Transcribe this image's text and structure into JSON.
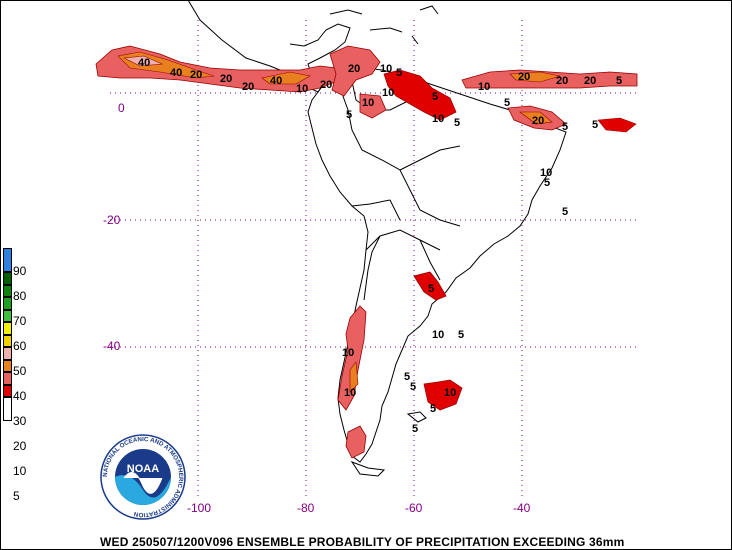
{
  "caption": "WED 250507/1200V096  ENSEMBLE PROBABILITY OF PRECIPITATION EXCEEDING 36mm",
  "lat_labels": [
    "0",
    "-20",
    "-40"
  ],
  "lon_labels": [
    "-100",
    "-80",
    "-60",
    "-40"
  ],
  "legend": {
    "labels": [
      "5",
      "10",
      "20",
      "30",
      "40",
      "50",
      "60",
      "70",
      "80",
      "90"
    ],
    "colors": {
      "c0": "#ffffff",
      "c5": "#e00000",
      "c10": "#e86060",
      "c20": "#e88020",
      "c30": "#f0b0b0",
      "c40": "#f0d000",
      "c50": "#f0f000",
      "c60": "#40c040",
      "c70": "#20a020",
      "c80": "#108010",
      "c90": "#006000",
      "c100": "#3080e0"
    }
  },
  "logo": {
    "text": "NOAA",
    "ring_text": "NATIONAL OCEANIC AND ATMOSPHERIC ADMINISTRATION"
  },
  "contour_labels": {
    "pacific_band": [
      "40",
      "40",
      "20",
      "20",
      "20",
      "40",
      "20",
      "10",
      "20",
      "10"
    ],
    "atlantic_band": [
      "10",
      "20",
      "20",
      "20",
      "5"
    ],
    "amazon": [
      "5",
      "10",
      "5",
      "10",
      "5",
      "10",
      "5"
    ],
    "brazil_coast": [
      "20",
      "5",
      "5",
      "10",
      "5",
      "5",
      "5"
    ],
    "south": [
      "5",
      "10",
      "5",
      "10",
      "5",
      "5",
      "10",
      "10",
      "5",
      "5"
    ]
  }
}
